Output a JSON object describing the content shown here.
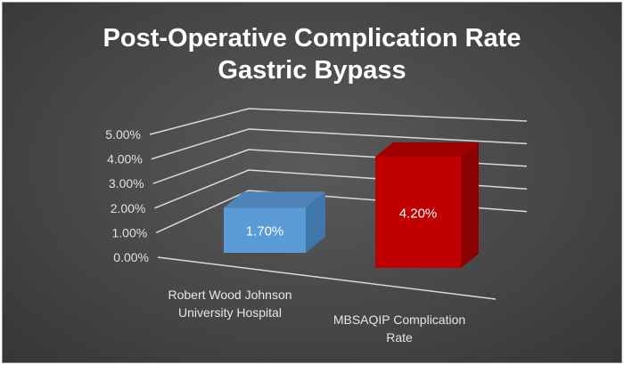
{
  "chart_data": {
    "type": "bar",
    "title": "Post-Operative Complication Rate",
    "subtitle": "Gastric Bypass",
    "categories": [
      "Robert Wood Johnson University Hospital",
      "MBSAQIP Complication Rate"
    ],
    "category_lines": [
      [
        "Robert Wood Johnson",
        "University Hospital"
      ],
      [
        "MBSAQIP Complication",
        "Rate"
      ]
    ],
    "values": [
      1.7,
      4.2
    ],
    "data_labels": [
      "1.70%",
      "4.20%"
    ],
    "colors": [
      "#5b9bd5",
      "#c00000"
    ],
    "y_ticks": [
      "0.00%",
      "1.00%",
      "2.00%",
      "3.00%",
      "4.00%",
      "5.00%"
    ],
    "ylim": [
      0,
      5
    ],
    "grid": true,
    "style": "3d-column"
  }
}
